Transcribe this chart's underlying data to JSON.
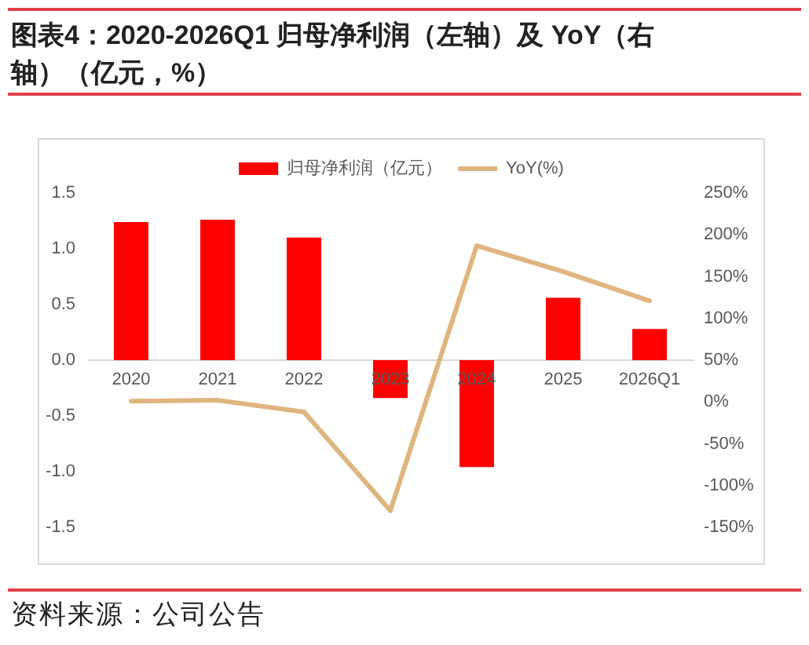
{
  "chart_data": {
    "type": "bar",
    "title": "图表4：2020-2026Q1 归母净利润（左轴）及 YoY（右轴）（亿元，%）",
    "annotations": [
      "资料来源：公司公告"
    ],
    "categories": [
      "2020",
      "2021",
      "2022",
      "2023",
      "2024",
      "2025",
      "2026Q1"
    ],
    "series": [
      {
        "name": "归母净利润（亿元）",
        "color": "#ff0000",
        "values": [
          1.24,
          1.26,
          1.1,
          -0.34,
          -0.96,
          0.56,
          0.28
        ]
      },
      {
        "name": "YoY(%)",
        "type": "line",
        "axis": "y2",
        "color": "#dfb57f",
        "values": [
          1,
          2,
          -12,
          -130,
          187,
          156,
          121
        ]
      }
    ],
    "ylim": [
      -1.5,
      1.5
    ],
    "yticks": [
      {
        "value": -1.5,
        "label": "-1.5"
      },
      {
        "value": -1,
        "label": "-1.0"
      },
      {
        "value": -0.5,
        "label": "-0.5"
      },
      {
        "value": 0,
        "label": "0.0"
      },
      {
        "value": 0.5,
        "label": "0.5"
      },
      {
        "value": 1,
        "label": "1.0"
      },
      {
        "value": 1.5,
        "label": "1.5"
      }
    ],
    "y2lim": [
      -150,
      250
    ],
    "y2ticks": [
      {
        "value": -150,
        "label": "-150%"
      },
      {
        "value": -100,
        "label": "-100%"
      },
      {
        "value": -50,
        "label": "-50%"
      },
      {
        "value": 0,
        "label": "0%"
      },
      {
        "value": 50,
        "label": "50%"
      },
      {
        "value": 100,
        "label": "100%"
      },
      {
        "value": 150,
        "label": "150%"
      },
      {
        "value": 200,
        "label": "200%"
      },
      {
        "value": 250,
        "label": "250%"
      }
    ],
    "legend": "top"
  }
}
